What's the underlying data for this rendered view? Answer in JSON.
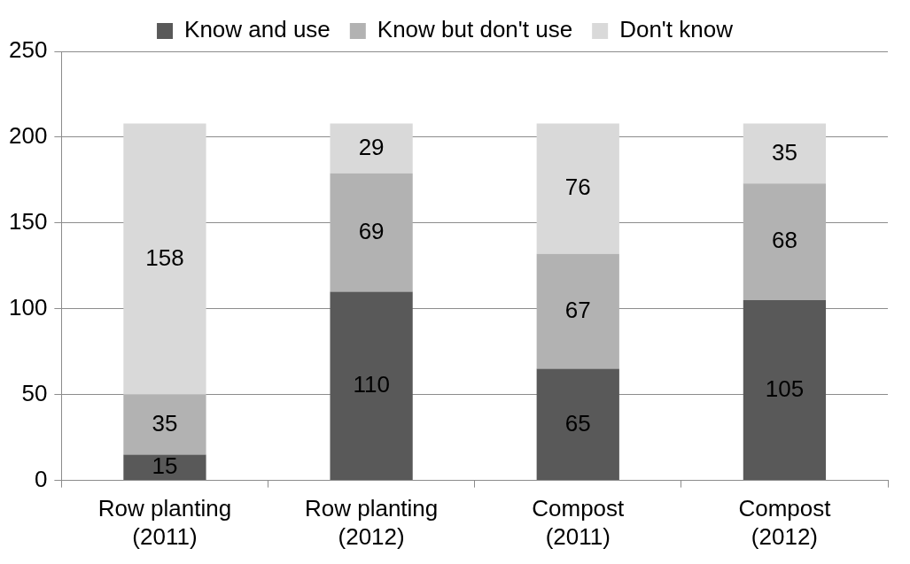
{
  "chart_data": {
    "type": "bar",
    "stacked": true,
    "categories": [
      "Row planting (2011)",
      "Row planting (2012)",
      "Compost (2011)",
      "Compost (2012)"
    ],
    "series": [
      {
        "name": "Know and use",
        "color": "#595959",
        "values": [
          15,
          110,
          65,
          105
        ]
      },
      {
        "name": "Know but don't use",
        "color": "#b2b2b2",
        "values": [
          35,
          69,
          67,
          68
        ]
      },
      {
        "name": "Don't know",
        "color": "#d9d9d9",
        "values": [
          158,
          29,
          76,
          35
        ]
      }
    ],
    "ylim": [
      0,
      250
    ],
    "yticks": [
      0,
      50,
      100,
      150,
      200,
      250
    ],
    "grid": "y",
    "legend": "top",
    "data_labels": true
  }
}
